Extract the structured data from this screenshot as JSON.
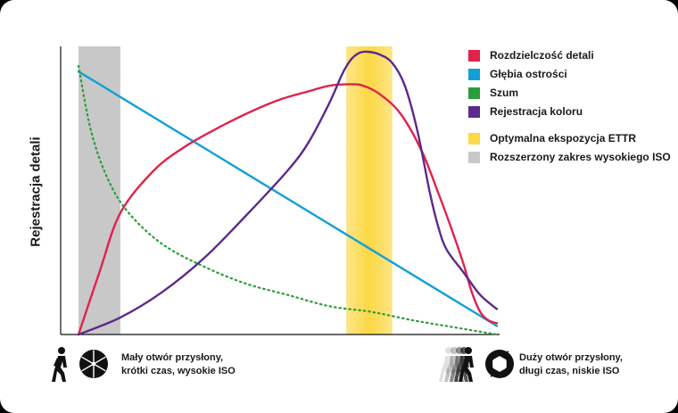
{
  "chart_data": {
    "type": "line",
    "title": "",
    "xlabel": "",
    "ylabel": "Rejestracja detali",
    "xlim": [
      0,
      100
    ],
    "ylim": [
      0,
      100
    ],
    "grid": false,
    "legend_position": "top-right",
    "series": [
      {
        "name": "Rozdzielczość detali",
        "color": "#e0234b",
        "x": [
          0,
          5,
          10,
          18,
          25,
          32,
          40,
          48,
          55,
          60,
          65,
          68,
          72,
          77,
          82,
          86,
          89,
          92,
          94,
          96,
          98,
          100
        ],
        "y": [
          0,
          22,
          43,
          58,
          66,
          72,
          78,
          83,
          86,
          88,
          88.5,
          88,
          85,
          78,
          65,
          50,
          38,
          25,
          15,
          8,
          5,
          4
        ]
      },
      {
        "name": "Głębia ostrości",
        "color": "#12a0d7",
        "x": [
          0,
          100
        ],
        "y": [
          93,
          3
        ]
      },
      {
        "name": "Szum",
        "color": "#2a9d3a",
        "dashed": true,
        "x": [
          0,
          3,
          7,
          12,
          20,
          30,
          40,
          50,
          60,
          70,
          80,
          90,
          100
        ],
        "y": [
          95,
          72,
          55,
          43,
          32,
          24,
          18,
          14,
          10,
          8,
          5,
          2.5,
          0
        ]
      },
      {
        "name": "Rejestracja koloru",
        "color": "#5b2a8c",
        "x": [
          0,
          10,
          20,
          30,
          40,
          50,
          55,
          60,
          63,
          65,
          67,
          69,
          72,
          75,
          78,
          81,
          84,
          86,
          88,
          92,
          96,
          100
        ],
        "y": [
          0,
          6,
          15,
          27,
          42,
          58,
          68,
          82,
          92,
          97,
          99.5,
          100,
          99,
          96,
          88,
          72,
          50,
          38,
          30,
          22,
          14,
          9
        ]
      }
    ],
    "bands": [
      {
        "name": "Optymalna ekspozycja ETTR",
        "color": "#fcd844",
        "x_range": [
          64,
          75
        ]
      },
      {
        "name": "Rozszerzony zakres wysokiego ISO",
        "color": "#c8c8c8",
        "x_range": [
          0,
          10
        ]
      }
    ]
  },
  "captions": {
    "left": {
      "line1": "Mały otwór przysłony,",
      "line2": "krótki czas, wysokie ISO"
    },
    "right": {
      "line1": "Duży otwór przysłony,",
      "line2": "długi czas, niskie ISO"
    }
  },
  "icons": {
    "left_walker": "walking-person-icon",
    "left_aperture": "aperture-small-icon",
    "right_walker": "motion-blur-walking-person-icon",
    "right_aperture": "aperture-wide-icon"
  }
}
